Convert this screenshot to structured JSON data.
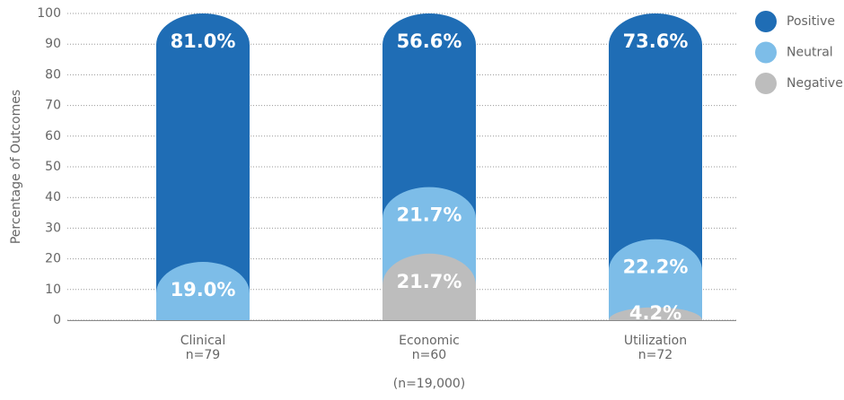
{
  "chart_data": {
    "type": "stacked_bar",
    "y_label": "Percentage of Outcomes",
    "categories": [
      "Clinical",
      "Economic",
      "Utilization"
    ],
    "category_notes": [
      "n=79",
      "n=60",
      "n=72"
    ],
    "note": "(n=19,000)",
    "series": [
      {
        "name": "Negative",
        "color": "#bdbdbd",
        "values": [
          null,
          21.7,
          4.2
        ],
        "value_labels": [
          null,
          "21.7%",
          "4.2%"
        ]
      },
      {
        "name": "Neutral",
        "color": "#7dbde8",
        "values": [
          19.0,
          21.7,
          22.2
        ],
        "value_labels": [
          "19.0%",
          "21.7%",
          "22.2%"
        ]
      },
      {
        "name": "Positive",
        "color": "#1f6db5",
        "values": [
          81.0,
          56.6,
          73.6
        ],
        "value_labels": [
          "81.0%",
          "56.6%",
          "73.6%"
        ]
      }
    ],
    "ylim": [
      0,
      100
    ],
    "yticks": [
      0,
      10,
      20,
      30,
      40,
      50,
      60,
      70,
      80,
      90,
      100
    ],
    "grid": true,
    "legend_position": "top-right"
  }
}
